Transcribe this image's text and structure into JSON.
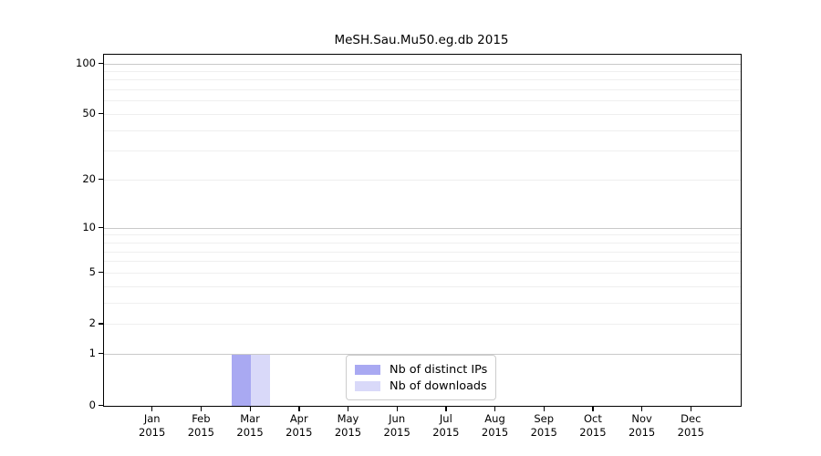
{
  "figure": {
    "title": "MeSH.Sau.Mu50.eg.db 2015"
  },
  "chart_data": {
    "type": "bar",
    "title": "MeSH.Sau.Mu50.eg.db 2015",
    "xlabel": "",
    "ylabel": "",
    "yscale": "log1p",
    "ylim": [
      0,
      100
    ],
    "grid": "horizontal",
    "legend_position": "inside-bottom-center",
    "categories": [
      {
        "line1": "Jan",
        "line2": "2015"
      },
      {
        "line1": "Feb",
        "line2": "2015"
      },
      {
        "line1": "Mar",
        "line2": "2015"
      },
      {
        "line1": "Apr",
        "line2": "2015"
      },
      {
        "line1": "May",
        "line2": "2015"
      },
      {
        "line1": "Jun",
        "line2": "2015"
      },
      {
        "line1": "Jul",
        "line2": "2015"
      },
      {
        "line1": "Aug",
        "line2": "2015"
      },
      {
        "line1": "Sep",
        "line2": "2015"
      },
      {
        "line1": "Oct",
        "line2": "2015"
      },
      {
        "line1": "Nov",
        "line2": "2015"
      },
      {
        "line1": "Dec",
        "line2": "2015"
      }
    ],
    "series": [
      {
        "name": "Nb of distinct IPs",
        "color": "#a9a9f2",
        "values": [
          0,
          0,
          1,
          0,
          0,
          0,
          0,
          0,
          0,
          0,
          0,
          0
        ]
      },
      {
        "name": "Nb of downloads",
        "color": "#d9d9f9",
        "values": [
          0,
          0,
          1,
          0,
          0,
          0,
          0,
          0,
          0,
          0,
          0,
          0
        ]
      }
    ],
    "y_major_ticks": [
      0,
      1,
      2,
      5,
      10,
      20,
      50,
      100
    ],
    "y_decade_gridlines": [
      1,
      10,
      100
    ],
    "y_minor_gridlines": [
      2,
      3,
      4,
      5,
      6,
      7,
      8,
      9,
      20,
      30,
      40,
      50,
      60,
      70,
      80,
      90
    ],
    "colors": {
      "axis": "#000000",
      "grid_major": "#c9c9c9",
      "grid_minor": "#efefef",
      "legend_border": "#cccccc",
      "background": "#ffffff"
    }
  }
}
